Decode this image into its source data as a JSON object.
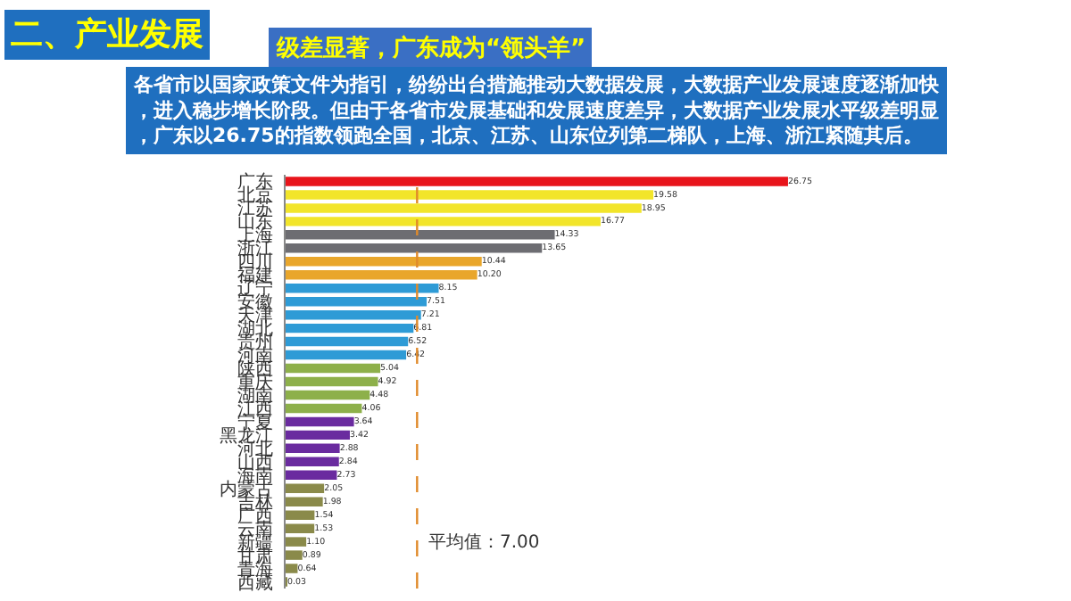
{
  "chart_data": {
    "type": "bar",
    "orientation": "horizontal",
    "title": "二、产业发展",
    "subtitle": "级差显著，广东成为“领头羊”",
    "annotations": [
      "各省市以国家政策文件为指引，纷纷出台措施推动大数据发展，大数据产业发展速度逐渐加快，进入稳步增长阶段。但由于各省市发展基础和发展速度差异，大数据产业发展水平级差明显，广东以26.75的指数领跑全国，北京、江苏、山东位列第二梯队，上海、浙江紧随其后。"
    ],
    "categories": [
      "广东",
      "北京",
      "江苏",
      "山东",
      "上海",
      "浙江",
      "四川",
      "福建",
      "辽宁",
      "安徽",
      "天津",
      "湖北",
      "贵州",
      "河南",
      "陕西",
      "重庆",
      "湖南",
      "江西",
      "宁夏",
      "黑龙江",
      "河北",
      "山西",
      "海南",
      "内蒙古",
      "吉林",
      "广西",
      "云南",
      "新疆",
      "甘肃",
      "青海",
      "西藏"
    ],
    "values": [
      26.75,
      19.58,
      18.95,
      16.77,
      14.33,
      13.65,
      10.44,
      10.2,
      8.15,
      7.51,
      7.21,
      6.81,
      6.52,
      6.42,
      5.04,
      4.92,
      4.48,
      4.06,
      3.64,
      3.42,
      2.88,
      2.84,
      2.73,
      2.05,
      1.98,
      1.54,
      1.53,
      1.1,
      0.89,
      0.64,
      0.03
    ],
    "value_labels": [
      "26.75",
      "19.58",
      "18.95",
      "16.77",
      "14.33",
      "13.65",
      "10.44",
      "10.20",
      "8.15",
      "7.51",
      "7.21",
      "6.81",
      "6.52",
      "6.42",
      "5.04",
      "4.92",
      "4.48",
      "4.06",
      "3.64",
      "3.42",
      "2.88",
      "2.84",
      "2.73",
      "2.05",
      "1.98",
      "1.54",
      "1.53",
      "1.10",
      "0.89",
      "0.64",
      "0.03"
    ],
    "colors": [
      "#e8141b",
      "#f2e52a",
      "#f2e52a",
      "#f2e52a",
      "#6d6d72",
      "#6d6d72",
      "#e9a62b",
      "#e9a62b",
      "#2e9bd6",
      "#2e9bd6",
      "#2e9bd6",
      "#2e9bd6",
      "#2e9bd6",
      "#2e9bd6",
      "#8db04a",
      "#8db04a",
      "#8db04a",
      "#8db04a",
      "#6a2b9f",
      "#6a2b9f",
      "#6a2b9f",
      "#6a2b9f",
      "#6a2b9f",
      "#8a8a4a",
      "#8a8a4a",
      "#8a8a4a",
      "#8a8a4a",
      "#8a8a4a",
      "#8a8a4a",
      "#8a8a4a",
      "#8a8a4a"
    ],
    "ref_lines": [
      {
        "axis": "x",
        "value": 7.0,
        "label": "平均值：7.00",
        "color": "#e08a2a",
        "line_style": "dashed"
      }
    ]
  }
}
